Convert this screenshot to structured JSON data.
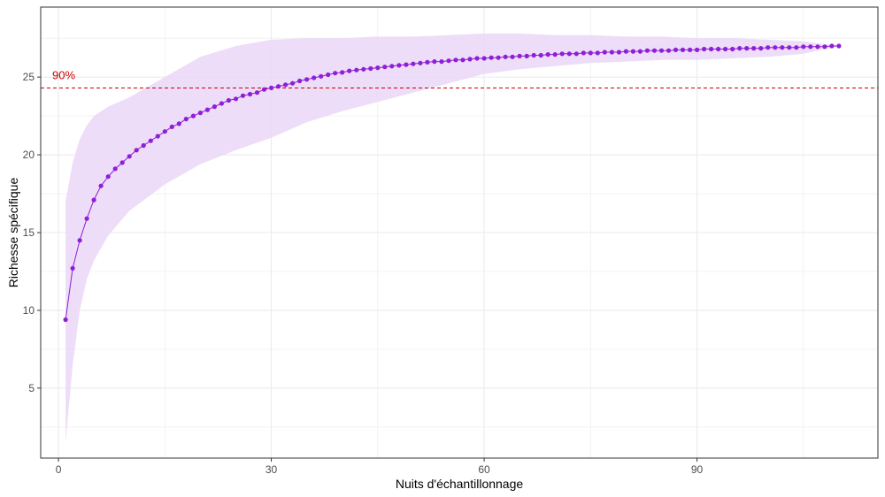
{
  "chart_data": {
    "type": "line",
    "xlabel": "Nuits d'échantillonnage",
    "ylabel": "Richesse spécifique",
    "xlim": [
      -2.5,
      115.5
    ],
    "ylim": [
      0.5,
      29.5
    ],
    "x_ticks": [
      0,
      30,
      60,
      90
    ],
    "y_ticks": [
      5,
      10,
      15,
      20,
      25
    ],
    "x_tick_labels": [
      "0",
      "30",
      "60",
      "90"
    ],
    "y_tick_labels": [
      "5",
      "10",
      "15",
      "20",
      "25"
    ],
    "grid": true,
    "reference_line": {
      "y": 24.3,
      "label": "90%",
      "label_x": 1,
      "color": "#cc0000",
      "style": "dashed"
    },
    "colors": {
      "line": "#8f1fd6",
      "band": "#ead7f7",
      "panel_border": "#333333",
      "grid": "#ebebeb"
    },
    "series": [
      {
        "x_start": 1,
        "x_step": 1,
        "values": [
          9.4,
          12.7,
          14.5,
          15.9,
          17.1,
          18.0,
          18.6,
          19.1,
          19.5,
          19.9,
          20.3,
          20.6,
          20.9,
          21.2,
          21.5,
          21.8,
          22.0,
          22.3,
          22.5,
          22.7,
          22.9,
          23.1,
          23.3,
          23.5,
          23.6,
          23.8,
          23.9,
          24.0,
          24.2,
          24.3,
          24.4,
          24.5,
          24.6,
          24.75,
          24.85,
          24.95,
          25.05,
          25.15,
          25.25,
          25.3,
          25.4,
          25.45,
          25.5,
          25.55,
          25.6,
          25.65,
          25.7,
          25.75,
          25.8,
          25.85,
          25.9,
          25.95,
          26.0,
          26.0,
          26.05,
          26.1,
          26.1,
          26.15,
          26.2,
          26.2,
          26.25,
          26.25,
          26.3,
          26.3,
          26.35,
          26.35,
          26.4,
          26.4,
          26.45,
          26.45,
          26.5,
          26.5,
          26.5,
          26.55,
          26.55,
          26.55,
          26.6,
          26.6,
          26.6,
          26.65,
          26.65,
          26.65,
          26.7,
          26.7,
          26.7,
          26.7,
          26.75,
          26.75,
          26.75,
          26.75,
          26.8,
          26.8,
          26.8,
          26.8,
          26.8,
          26.85,
          26.85,
          26.85,
          26.85,
          26.9,
          26.9,
          26.9,
          26.9,
          26.9,
          26.95,
          26.95,
          26.95,
          26.95,
          27.0,
          27.0
        ],
        "band_x": [
          1,
          2,
          3,
          4,
          5,
          7,
          10,
          15,
          20,
          25,
          30,
          35,
          40,
          45,
          50,
          55,
          60,
          65,
          70,
          75,
          80,
          85,
          90,
          95,
          100,
          105,
          110
        ],
        "band_upper": [
          17.0,
          19.5,
          21.0,
          21.9,
          22.5,
          23.1,
          23.7,
          25.0,
          26.3,
          27.0,
          27.4,
          27.5,
          27.5,
          27.6,
          27.6,
          27.7,
          27.8,
          27.8,
          27.7,
          27.7,
          27.6,
          27.6,
          27.5,
          27.5,
          27.4,
          27.3,
          27.0
        ],
        "band_lower": [
          1.5,
          6.5,
          10.0,
          12.0,
          13.2,
          14.8,
          16.4,
          18.1,
          19.4,
          20.3,
          21.1,
          22.1,
          22.8,
          23.4,
          24.0,
          24.6,
          25.2,
          25.5,
          25.7,
          25.9,
          26.0,
          26.1,
          26.1,
          26.2,
          26.3,
          26.5,
          27.0
        ]
      }
    ]
  }
}
